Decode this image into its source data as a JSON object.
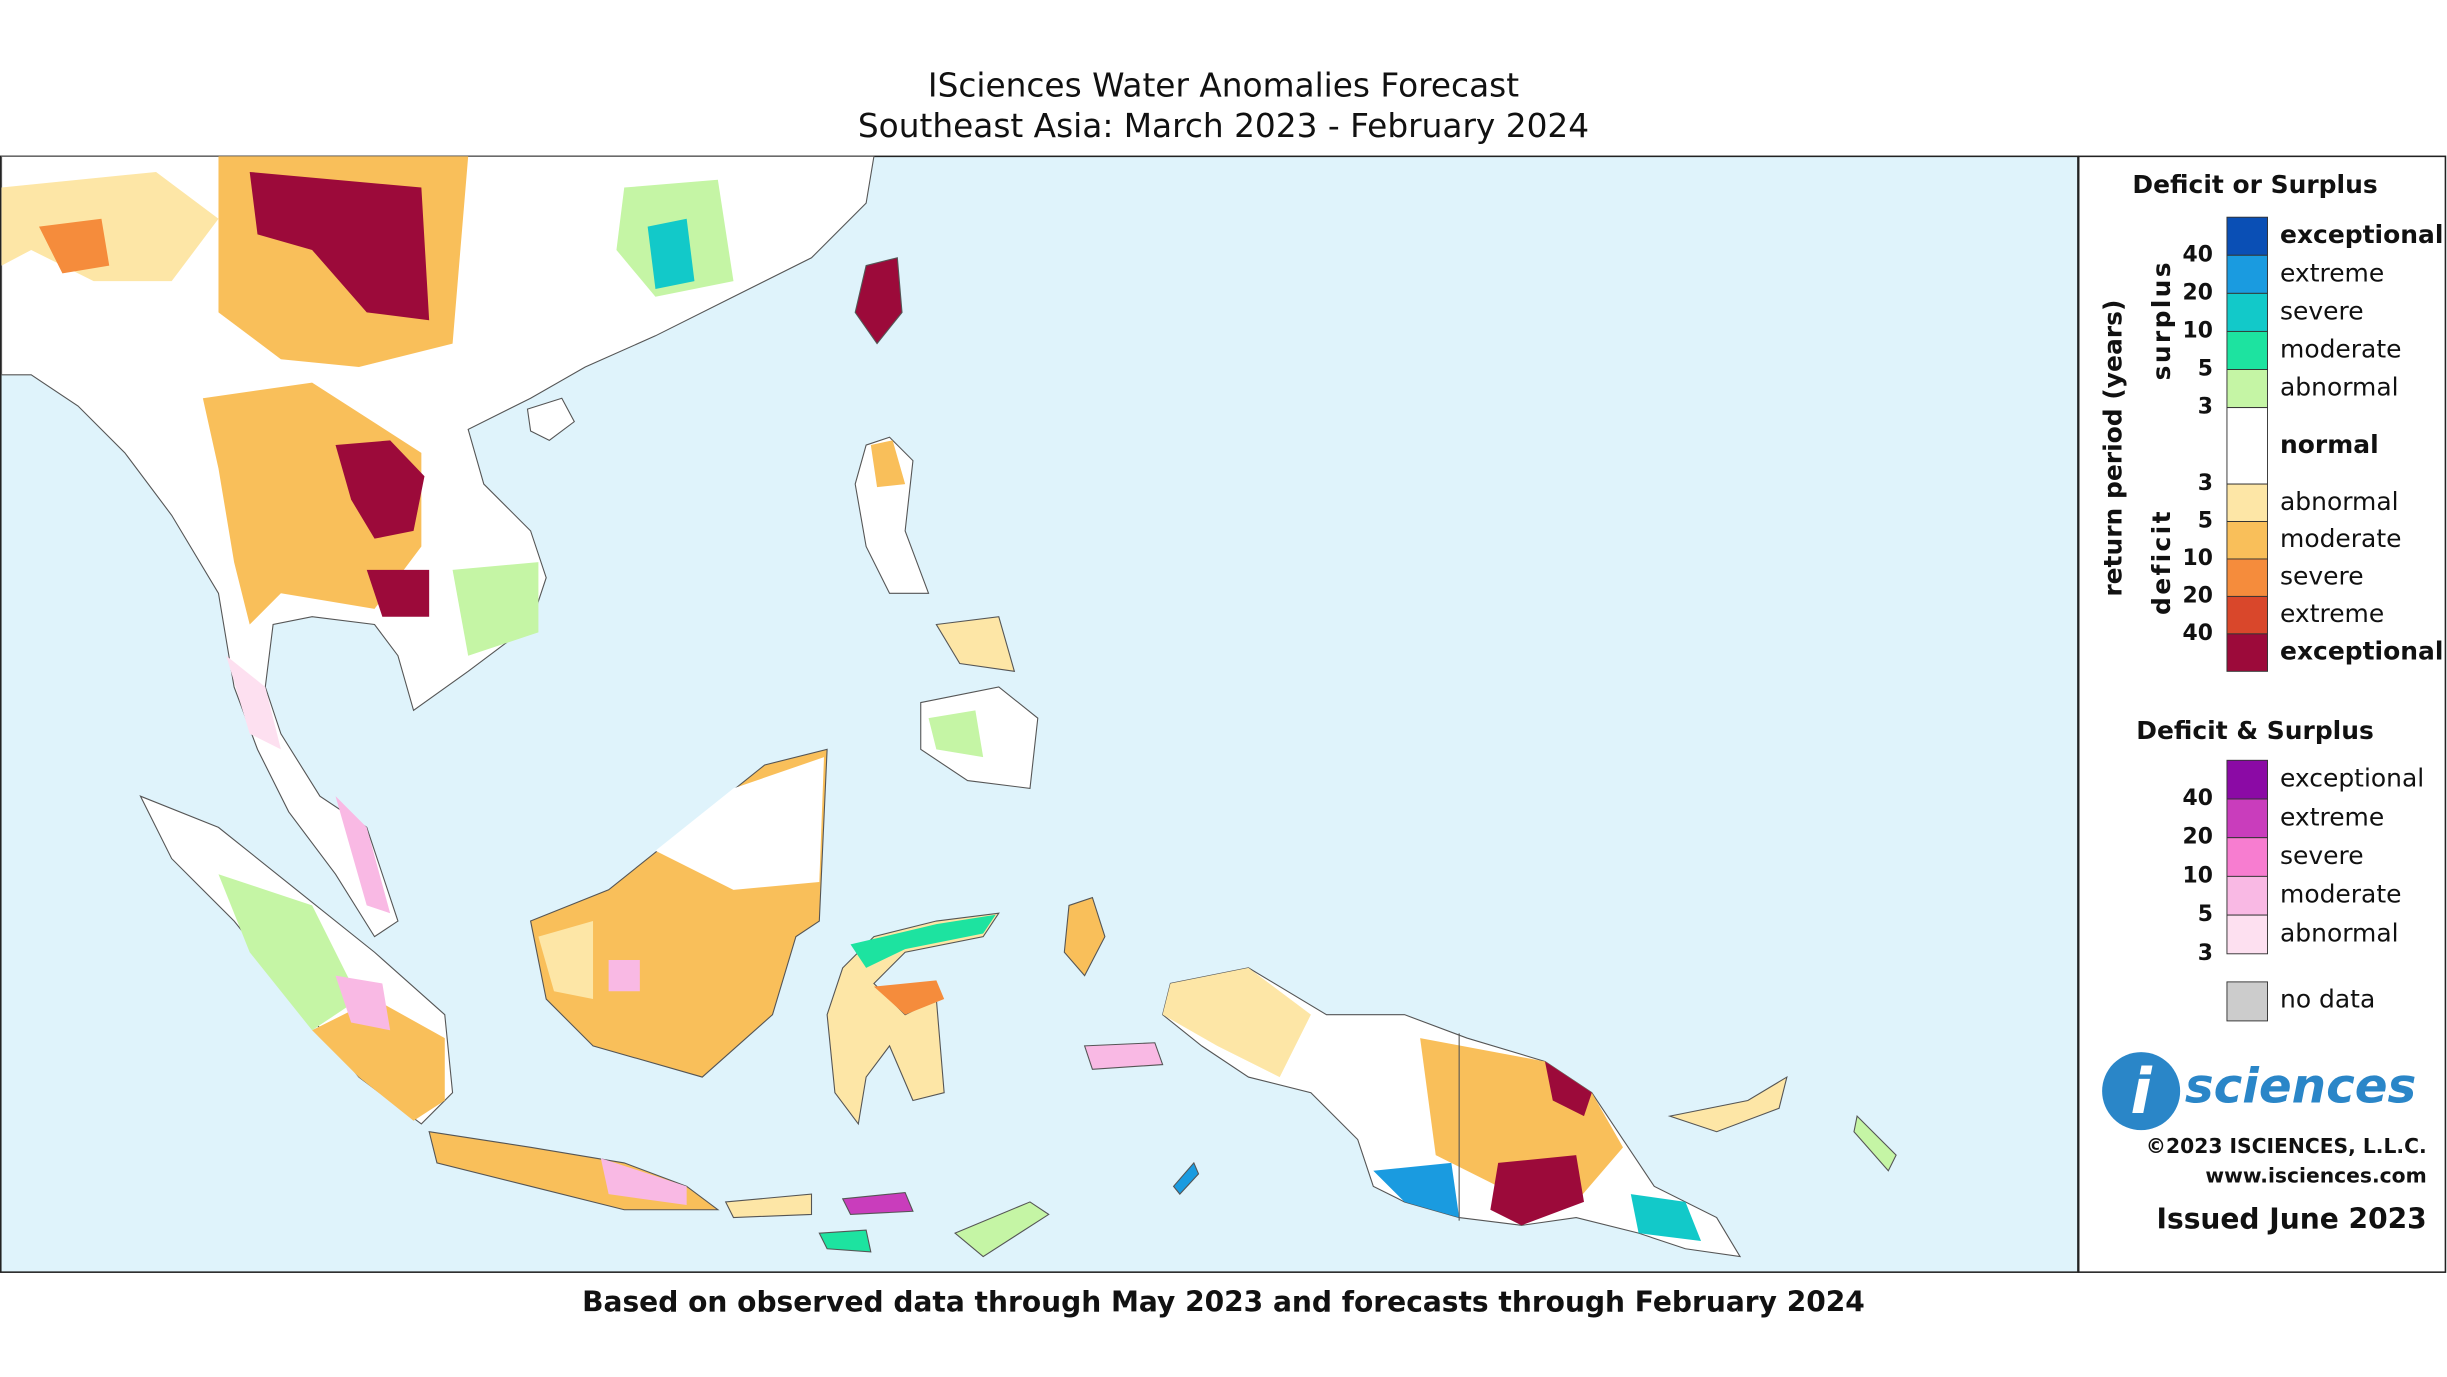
{
  "header": {
    "title": "ISciences Water Anomalies Forecast",
    "subtitle": "Southeast Asia: March 2023 - February 2024"
  },
  "footer": "Based on observed data through May 2023 and forecasts through February 2024",
  "legend": {
    "deficit_or_surplus": {
      "title": "Deficit or Surplus",
      "axis_label": "return period (years)",
      "surplus_label": "surplus",
      "deficit_label": "deficit",
      "surplus_entries": [
        {
          "label": "exceptional",
          "color": "#0a4fb5"
        },
        {
          "label": "extreme",
          "color": "#1a9be0"
        },
        {
          "label": "severe",
          "color": "#12c9c9"
        },
        {
          "label": "moderate",
          "color": "#1de3a0"
        },
        {
          "label": "abnormal",
          "color": "#c5f5a5"
        }
      ],
      "normal": {
        "label": "normal",
        "color": "#ffffff"
      },
      "deficit_entries": [
        {
          "label": "abnormal",
          "color": "#fde6a6"
        },
        {
          "label": "moderate",
          "color": "#f9bf5a"
        },
        {
          "label": "severe",
          "color": "#f58c3c"
        },
        {
          "label": "extreme",
          "color": "#d9472b"
        },
        {
          "label": "exceptional",
          "color": "#9c0a3a"
        }
      ],
      "surplus_ticks": [
        40,
        20,
        10,
        5,
        3
      ],
      "deficit_ticks": [
        3,
        5,
        10,
        20,
        40
      ]
    },
    "deficit_and_surplus": {
      "title": "Deficit & Surplus",
      "entries": [
        {
          "label": "exceptional",
          "color": "#8b0aa5"
        },
        {
          "label": "extreme",
          "color": "#c93dbc"
        },
        {
          "label": "severe",
          "color": "#f77dd0"
        },
        {
          "label": "moderate",
          "color": "#f9b9e4"
        },
        {
          "label": "abnormal",
          "color": "#fde0f0"
        }
      ],
      "ticks": [
        40,
        20,
        10,
        5,
        3
      ]
    },
    "no_data": {
      "label": "no data",
      "color": "#cccccc"
    }
  },
  "branding": {
    "logo_i": "i",
    "logo_text": "sciences",
    "copyright": "©2023 ISCIENCES, L.L.C.",
    "website": "www.isciences.com",
    "issued": "Issued June 2023"
  }
}
